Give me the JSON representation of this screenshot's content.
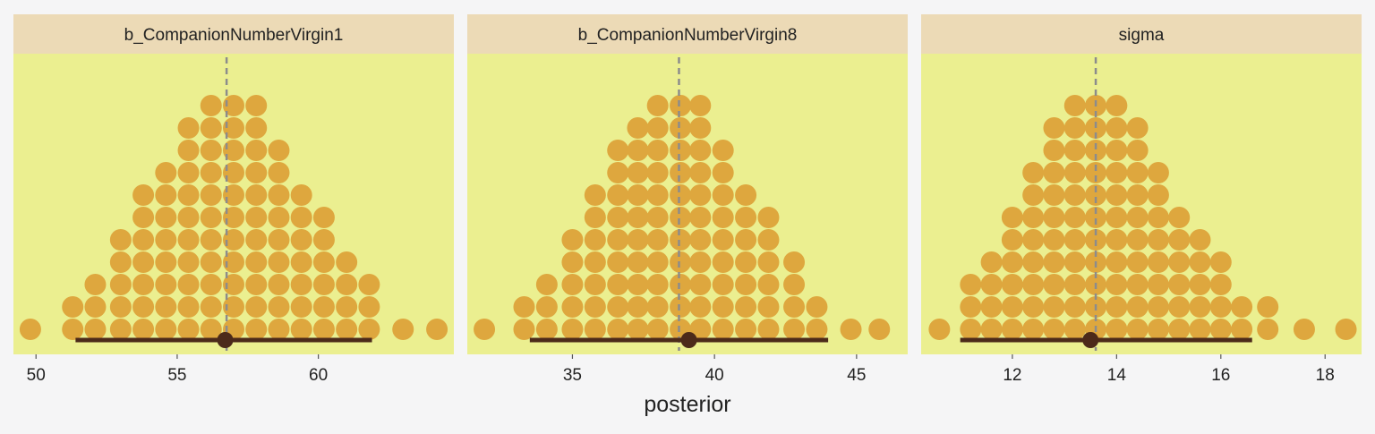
{
  "colors": {
    "background": "#f5f5f6",
    "strip": "#ecdab6",
    "panel": "#ebef90",
    "dot": "#dea73e",
    "interval": "#4c2a1a",
    "reference_line": "#8c8c8c",
    "text": "#222222"
  },
  "xlabel": "posterior",
  "chart_data": [
    {
      "type": "dotplot",
      "title": "b_CompanionNumberVirgin1",
      "xlim": [
        49.2,
        64.8
      ],
      "ticks": [
        50,
        55,
        60
      ],
      "tick_labels": [
        "50",
        "55",
        "60"
      ],
      "reference_line": 56.75,
      "dot_step": 0.8,
      "dots": [
        {
          "x": 49.8,
          "count": 1
        },
        {
          "x": 51.3,
          "count": 2
        },
        {
          "x": 52.1,
          "count": 3
        },
        {
          "x": 53.0,
          "count": 5
        },
        {
          "x": 53.8,
          "count": 7
        },
        {
          "x": 54.6,
          "count": 8
        },
        {
          "x": 55.4,
          "count": 10
        },
        {
          "x": 56.2,
          "count": 11
        },
        {
          "x": 57.0,
          "count": 11
        },
        {
          "x": 57.8,
          "count": 11
        },
        {
          "x": 58.6,
          "count": 9
        },
        {
          "x": 59.4,
          "count": 7
        },
        {
          "x": 60.2,
          "count": 6
        },
        {
          "x": 61.0,
          "count": 4
        },
        {
          "x": 61.8,
          "count": 3
        },
        {
          "x": 63.0,
          "count": 1
        },
        {
          "x": 64.2,
          "count": 1
        }
      ],
      "interval": {
        "low": 51.4,
        "high": 61.9,
        "point": 56.7
      }
    },
    {
      "type": "dotplot",
      "title": "b_CompanionNumberVirgin8",
      "xlim": [
        31.3,
        46.8
      ],
      "ticks": [
        35,
        40,
        45
      ],
      "tick_labels": [
        "35",
        "40",
        "45"
      ],
      "reference_line": 38.75,
      "dot_step": 0.75,
      "dots": [
        {
          "x": 31.9,
          "count": 1
        },
        {
          "x": 33.3,
          "count": 2
        },
        {
          "x": 34.1,
          "count": 3
        },
        {
          "x": 35.0,
          "count": 5
        },
        {
          "x": 35.8,
          "count": 7
        },
        {
          "x": 36.6,
          "count": 9
        },
        {
          "x": 37.3,
          "count": 10
        },
        {
          "x": 38.0,
          "count": 11
        },
        {
          "x": 38.8,
          "count": 11
        },
        {
          "x": 39.5,
          "count": 11
        },
        {
          "x": 40.3,
          "count": 9
        },
        {
          "x": 41.1,
          "count": 7
        },
        {
          "x": 41.9,
          "count": 6
        },
        {
          "x": 42.8,
          "count": 4
        },
        {
          "x": 43.6,
          "count": 2
        },
        {
          "x": 44.8,
          "count": 1
        },
        {
          "x": 45.8,
          "count": 1
        }
      ],
      "interval": {
        "low": 33.5,
        "high": 44.0,
        "point": 39.1
      }
    },
    {
      "type": "dotplot",
      "title": "sigma",
      "xlim": [
        10.25,
        18.7
      ],
      "ticks": [
        12,
        14,
        16,
        18
      ],
      "tick_labels": [
        "12",
        "14",
        "16",
        "18"
      ],
      "reference_line": 13.6,
      "dot_step": 0.38,
      "dots": [
        {
          "x": 10.6,
          "count": 1
        },
        {
          "x": 11.2,
          "count": 3
        },
        {
          "x": 11.6,
          "count": 4
        },
        {
          "x": 12.0,
          "count": 6
        },
        {
          "x": 12.4,
          "count": 8
        },
        {
          "x": 12.8,
          "count": 10
        },
        {
          "x": 13.2,
          "count": 11
        },
        {
          "x": 13.6,
          "count": 11
        },
        {
          "x": 14.0,
          "count": 11
        },
        {
          "x": 14.4,
          "count": 10
        },
        {
          "x": 14.8,
          "count": 8
        },
        {
          "x": 15.2,
          "count": 6
        },
        {
          "x": 15.6,
          "count": 5
        },
        {
          "x": 16.0,
          "count": 4
        },
        {
          "x": 16.4,
          "count": 2
        },
        {
          "x": 16.9,
          "count": 2
        },
        {
          "x": 17.6,
          "count": 1
        },
        {
          "x": 18.4,
          "count": 1
        }
      ],
      "interval": {
        "low": 11.0,
        "high": 16.6,
        "point": 13.5
      }
    }
  ]
}
